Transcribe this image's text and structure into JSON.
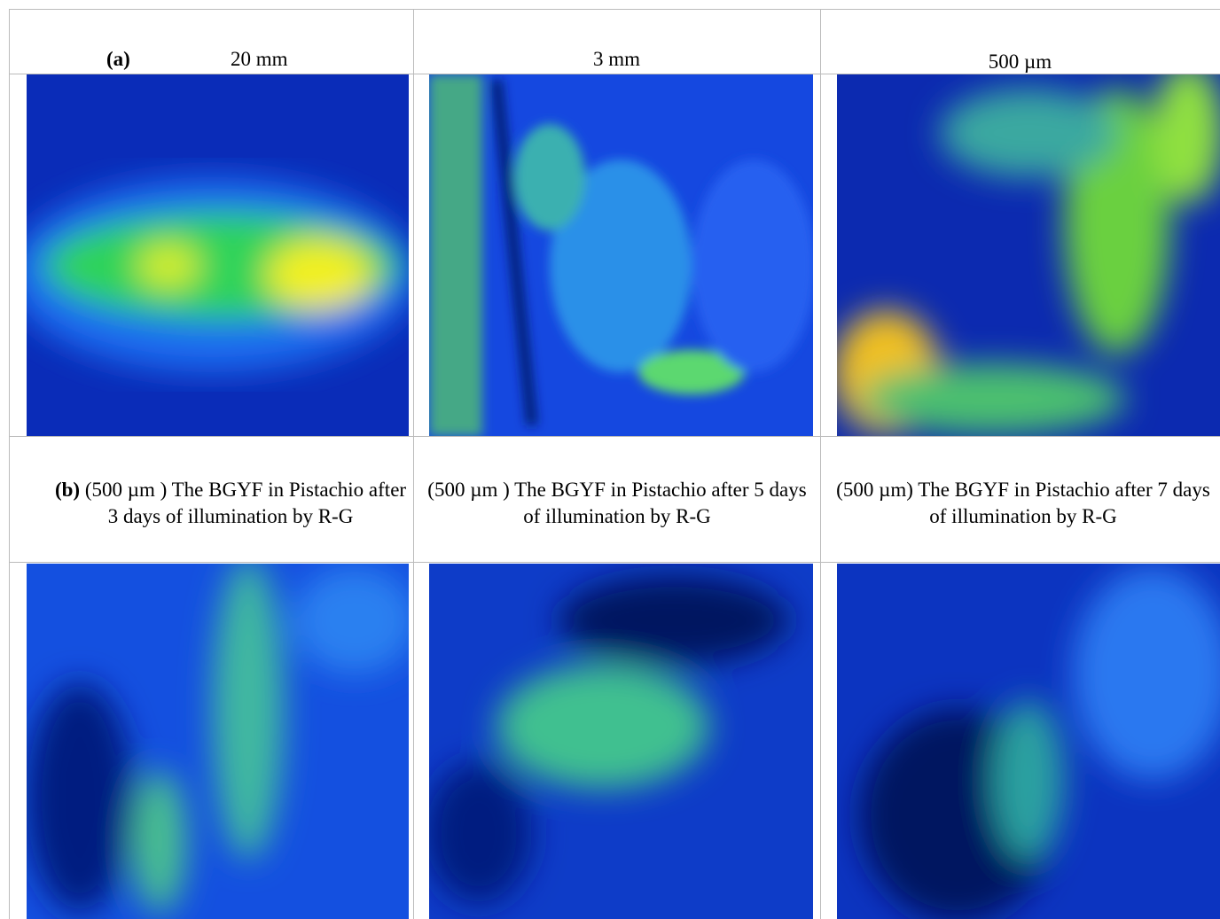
{
  "table": {
    "rows": [
      {
        "label": "(a)",
        "cells": [
          "20 mm",
          "3 mm",
          "500 µm"
        ]
      },
      {
        "label": "(b)",
        "cells": [
          "(500 µm ) The BGYF in Pistachio after 3 days of illumination by R-G",
          "(500 µm ) The BGYF in Pistachio after 5 days of illumination by R-G",
          "(500 µm) The BGYF in Pistachio after 7 days of illumination by R-G"
        ]
      }
    ]
  }
}
